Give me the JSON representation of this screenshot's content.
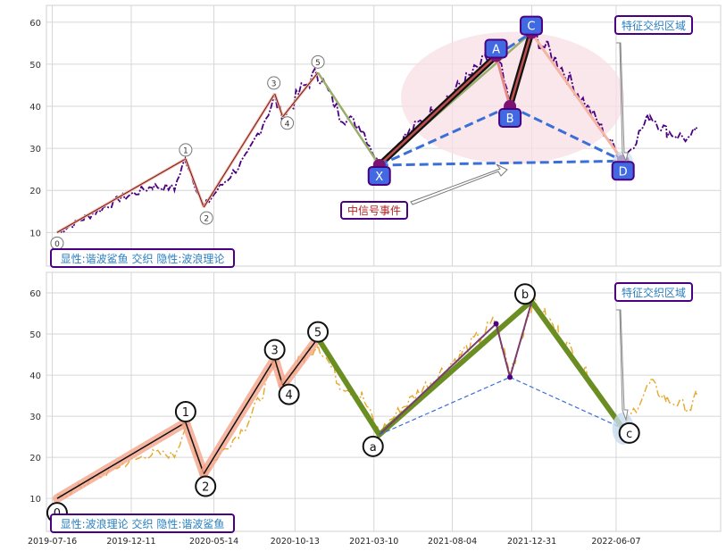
{
  "chart_data": [
    {
      "type": "line",
      "ylim": [
        2,
        64
      ],
      "yticks": [
        10,
        20,
        30,
        40,
        50,
        60
      ],
      "x_range": [
        "2019-07-05",
        "2022-12-20"
      ],
      "grid": true,
      "series_color": "#4b0082",
      "price": [
        [
          "2019-07-25",
          10.0
        ],
        [
          "2019-09-15",
          13.5
        ],
        [
          "2019-11-20",
          18.0
        ],
        [
          "2020-01-20",
          21.0
        ],
        [
          "2020-03-01",
          20.5
        ],
        [
          "2020-03-22",
          27.5
        ],
        [
          "2020-04-25",
          16.0
        ],
        [
          "2020-05-20",
          20.0
        ],
        [
          "2020-07-15",
          28.0
        ],
        [
          "2020-09-05",
          42.0
        ],
        [
          "2020-09-20",
          37.0
        ],
        [
          "2020-10-25",
          44.0
        ],
        [
          "2020-11-25",
          48.0
        ],
        [
          "2021-01-05",
          38.0
        ],
        [
          "2021-02-15",
          35.0
        ],
        [
          "2021-03-20",
          26.0
        ],
        [
          "2021-05-01",
          32.0
        ],
        [
          "2021-06-20",
          38.0
        ],
        [
          "2021-08-20",
          45.0
        ],
        [
          "2021-10-25",
          53.0
        ],
        [
          "2021-11-20",
          40.0
        ],
        [
          "2021-12-30",
          58.0
        ],
        [
          "2022-02-20",
          50.0
        ],
        [
          "2022-05-10",
          35.0
        ],
        [
          "2022-06-20",
          27.0
        ],
        [
          "2022-08-10",
          38.0
        ],
        [
          "2022-09-10",
          34.0
        ],
        [
          "2022-10-25",
          32.0
        ],
        [
          "2022-11-05",
          35.0
        ]
      ],
      "wave_points": [
        {
          "label": "0",
          "x": "2019-07-25",
          "y": 10.0
        },
        {
          "label": "1",
          "x": "2020-03-22",
          "y": 27.5
        },
        {
          "label": "2",
          "x": "2020-04-25",
          "y": 16.0
        },
        {
          "label": "3",
          "x": "2020-09-05",
          "y": 43.0
        },
        {
          "label": "4",
          "x": "2020-09-20",
          "y": 37.5
        },
        {
          "label": "5",
          "x": "2020-11-25",
          "y": 48.0
        }
      ],
      "harmonic_points": [
        {
          "label": "X",
          "x": "2021-03-20",
          "y": 26.0
        },
        {
          "label": "A",
          "x": "2021-10-25",
          "y": 52.0
        },
        {
          "label": "B",
          "x": "2021-11-20",
          "y": 40.0
        },
        {
          "label": "C",
          "x": "2021-12-30",
          "y": 57.5
        },
        {
          "label": "D",
          "x": "2022-06-20",
          "y": 27.0
        }
      ],
      "annotations": {
        "zone_text": "特征交织区域",
        "signal_text": "中信号事件",
        "corner_text": "显性:谐波鲨鱼 交织 隐性:波浪理论"
      }
    },
    {
      "type": "line",
      "ylim": [
        2,
        65
      ],
      "yticks": [
        10,
        20,
        30,
        40,
        50,
        60
      ],
      "x_range": [
        "2019-07-05",
        "2022-12-20"
      ],
      "xticks": [
        "2019-07-16",
        "2019-12-11",
        "2020-05-14",
        "2020-10-13",
        "2021-03-10",
        "2021-08-04",
        "2021-12-31",
        "2022-06-07"
      ],
      "grid": true,
      "series_color": "#e6a82a",
      "price": [
        [
          "2019-07-25",
          10.0
        ],
        [
          "2019-09-15",
          13.5
        ],
        [
          "2019-11-20",
          18.0
        ],
        [
          "2020-01-20",
          21.0
        ],
        [
          "2020-03-01",
          20.5
        ],
        [
          "2020-03-22",
          27.5
        ],
        [
          "2020-04-25",
          16.0
        ],
        [
          "2020-05-20",
          20.0
        ],
        [
          "2020-07-15",
          28.0
        ],
        [
          "2020-09-05",
          42.0
        ],
        [
          "2020-09-20",
          37.0
        ],
        [
          "2020-10-25",
          44.0
        ],
        [
          "2020-11-25",
          48.0
        ],
        [
          "2021-01-05",
          38.0
        ],
        [
          "2021-02-15",
          35.0
        ],
        [
          "2021-03-20",
          26.0
        ],
        [
          "2021-05-01",
          32.0
        ],
        [
          "2021-06-20",
          38.0
        ],
        [
          "2021-08-20",
          45.0
        ],
        [
          "2021-10-25",
          53.0
        ],
        [
          "2021-11-20",
          40.0
        ],
        [
          "2021-12-30",
          58.0
        ],
        [
          "2022-02-20",
          50.0
        ],
        [
          "2022-05-10",
          35.0
        ],
        [
          "2022-06-20",
          27.0
        ],
        [
          "2022-08-10",
          38.0
        ],
        [
          "2022-09-10",
          34.0
        ],
        [
          "2022-10-25",
          32.0
        ],
        [
          "2022-11-05",
          35.0
        ]
      ],
      "wave_points": [
        {
          "label": "0",
          "x": "2019-07-25",
          "y": 10.0
        },
        {
          "label": "1",
          "x": "2020-03-22",
          "y": 28.5
        },
        {
          "label": "2",
          "x": "2020-04-25",
          "y": 16.0
        },
        {
          "label": "3",
          "x": "2020-09-05",
          "y": 44.0
        },
        {
          "label": "4",
          "x": "2020-09-20",
          "y": 37.5
        },
        {
          "label": "5",
          "x": "2020-11-25",
          "y": 49.0
        },
        {
          "label": "a",
          "x": "2021-03-20",
          "y": 25.5
        },
        {
          "label": "b",
          "x": "2021-12-30",
          "y": 58.0
        },
        {
          "label": "c",
          "x": "2022-06-20",
          "y": 27.0
        }
      ],
      "harmonic_points": [
        {
          "label": "",
          "x": "2021-03-20",
          "y": 25.5
        },
        {
          "label": "",
          "x": "2021-10-25",
          "y": 52.5
        },
        {
          "label": "",
          "x": "2021-11-20",
          "y": 39.5
        },
        {
          "label": "",
          "x": "2021-12-30",
          "y": 57.5
        },
        {
          "label": "",
          "x": "2022-06-20",
          "y": 27.0
        }
      ],
      "annotations": {
        "zone_text": "特征交织区域",
        "corner_text": "显性:波浪理论 交织 隐性:谐波鲨鱼"
      }
    }
  ]
}
